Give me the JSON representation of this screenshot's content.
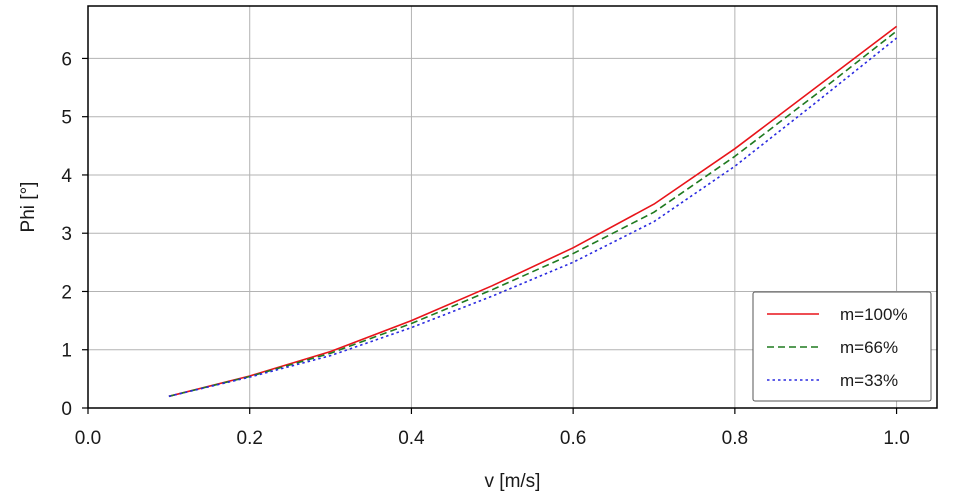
{
  "chart_data": {
    "type": "line",
    "xlabel": "v [m/s]",
    "ylabel": "Phi [°]",
    "xlim": [
      0.0,
      1.05
    ],
    "ylim": [
      0,
      6.9
    ],
    "xticks": [
      "0.0",
      "0.2",
      "0.4",
      "0.6",
      "0.8",
      "1.0"
    ],
    "yticks": [
      "0",
      "1",
      "2",
      "3",
      "4",
      "5",
      "6"
    ],
    "grid": true,
    "legend_position": "bottom-right",
    "series": [
      {
        "name": "m=100%",
        "color": "#e8141a",
        "dash": "solid",
        "x": [
          0.1,
          0.2,
          0.3,
          0.4,
          0.5,
          0.6,
          0.7,
          0.8,
          0.9,
          1.0
        ],
        "y": [
          0.2,
          0.55,
          0.97,
          1.5,
          2.1,
          2.75,
          3.5,
          4.45,
          5.5,
          6.55
        ]
      },
      {
        "name": "m=66%",
        "color": "#1f7a1f",
        "dash": "dashed",
        "x": [
          0.1,
          0.2,
          0.3,
          0.4,
          0.5,
          0.6,
          0.7,
          0.8,
          0.9,
          1.0
        ],
        "y": [
          0.2,
          0.54,
          0.94,
          1.45,
          2.03,
          2.65,
          3.36,
          4.32,
          5.38,
          6.47
        ]
      },
      {
        "name": "m=33%",
        "color": "#2a2ae0",
        "dash": "dotted",
        "x": [
          0.1,
          0.2,
          0.3,
          0.4,
          0.5,
          0.6,
          0.7,
          0.8,
          0.9,
          1.0
        ],
        "y": [
          0.2,
          0.53,
          0.9,
          1.38,
          1.92,
          2.5,
          3.2,
          4.15,
          5.24,
          6.35
        ]
      }
    ]
  }
}
